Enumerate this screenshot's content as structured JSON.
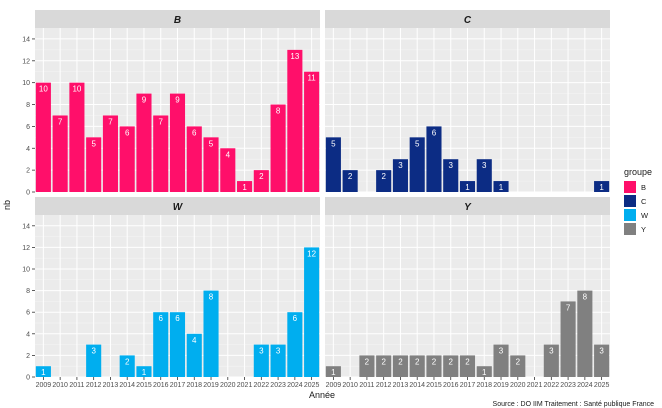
{
  "chart_data": {
    "type": "bar",
    "facet_wrap": true,
    "xlabel": "Année",
    "ylabel": "nb",
    "ylim": [
      0,
      15
    ],
    "yticks": [
      0,
      2,
      4,
      6,
      8,
      10,
      12,
      14
    ],
    "categories": [
      "2009",
      "2010",
      "2011",
      "2012",
      "2013",
      "2014",
      "2015",
      "2016",
      "2017",
      "2018",
      "2019",
      "2020",
      "2021",
      "2022",
      "2023",
      "2024",
      "2025"
    ],
    "legend": {
      "title": "groupe",
      "position": "right"
    },
    "caption": "Source : DO IIM Traitement : Santé publique France",
    "grid": true,
    "series": [
      {
        "name": "B",
        "color": "#ff0f6a",
        "values": [
          10,
          7,
          10,
          5,
          7,
          6,
          9,
          7,
          9,
          6,
          5,
          4,
          1,
          2,
          8,
          13,
          11
        ]
      },
      {
        "name": "C",
        "color": "#0c2c84",
        "values": [
          5,
          2,
          0,
          2,
          3,
          5,
          6,
          3,
          1,
          3,
          1,
          0,
          0,
          0,
          0,
          0,
          1
        ]
      },
      {
        "name": "W",
        "color": "#00aeef",
        "values": [
          1,
          0,
          0,
          3,
          0,
          2,
          1,
          6,
          6,
          4,
          8,
          0,
          0,
          3,
          3,
          6,
          12
        ]
      },
      {
        "name": "Y",
        "color": "#808080",
        "values": [
          1,
          0,
          2,
          2,
          2,
          2,
          2,
          2,
          2,
          1,
          3,
          2,
          0,
          3,
          7,
          8,
          3
        ]
      }
    ]
  }
}
